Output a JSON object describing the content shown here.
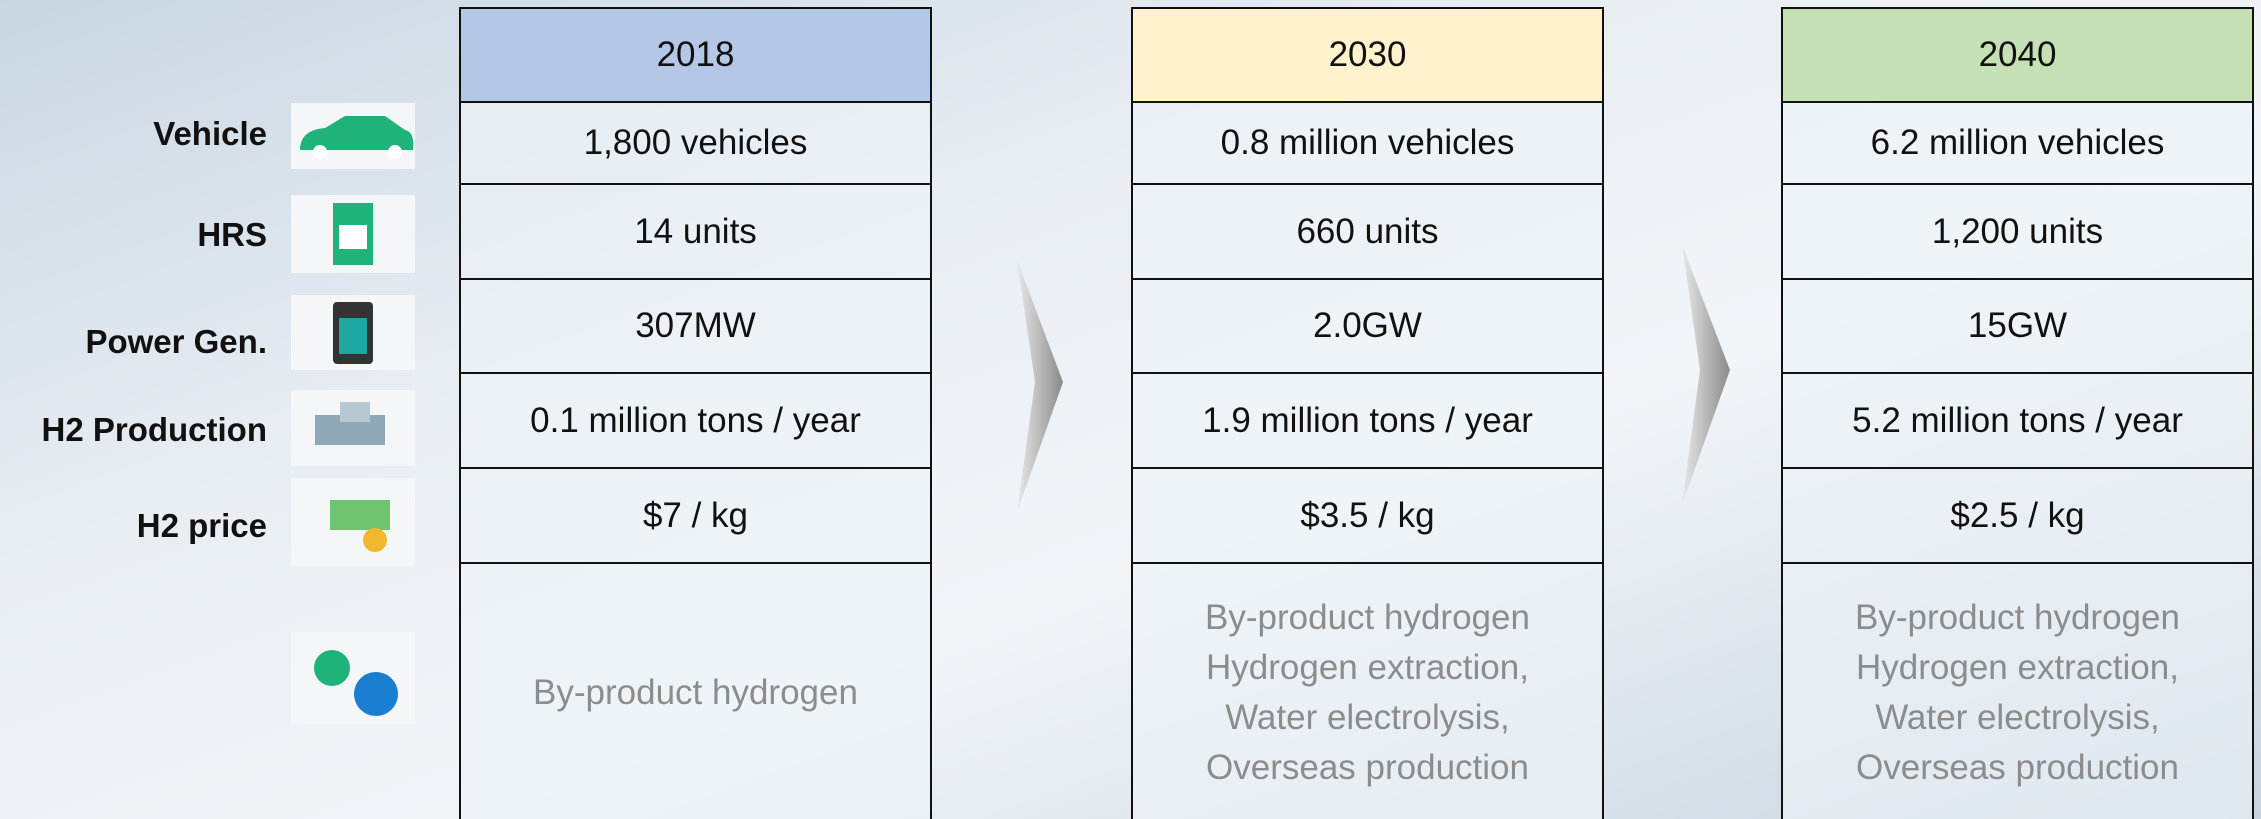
{
  "rows": [
    "Vehicle",
    "HRS",
    "Power Gen.",
    "H2 Production",
    "H2 price"
  ],
  "columns": [
    {
      "year": "2018",
      "cells": [
        "1,800 vehicles",
        "14 units",
        "307MW",
        "0.1 million tons / year",
        "$7 / kg"
      ],
      "source": [
        "By-product hydrogen"
      ]
    },
    {
      "year": "2030",
      "cells": [
        "0.8 million vehicles",
        "660 units",
        "2.0GW",
        "1.9 million tons / year",
        "$3.5 / kg"
      ],
      "source": [
        "By-product hydrogen",
        "Hydrogen extraction,",
        "Water electrolysis,",
        "Overseas production"
      ]
    },
    {
      "year": "2040",
      "cells": [
        "6.2 million vehicles",
        "1,200 units",
        "15GW",
        "5.2 million tons / year",
        "$2.5 / kg"
      ],
      "source": [
        "By-product hydrogen",
        "Hydrogen extraction,",
        "Water electrolysis,",
        "Overseas production"
      ]
    }
  ]
}
